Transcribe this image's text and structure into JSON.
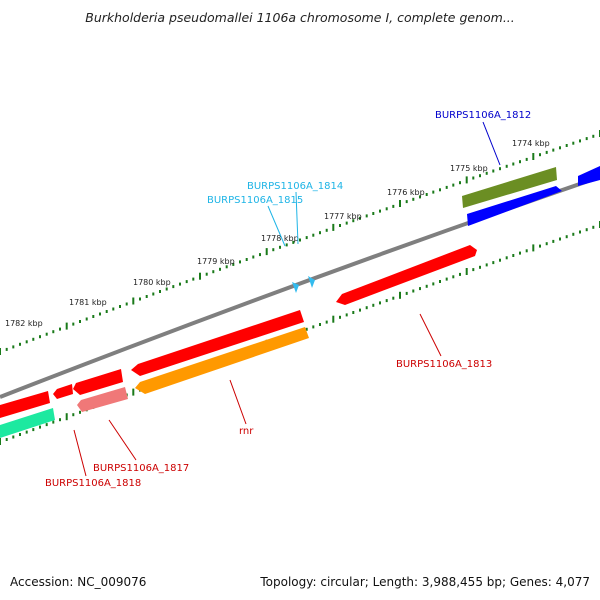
{
  "title": "Burkholderia pseudomallei 1106a chromosome I, complete genom...",
  "accession_label": "Accession: NC_009076",
  "summary_label": "Topology: circular; Length: 3,988,455 bp; Genes: 4,077",
  "scale_labels": [
    "1774 kbp",
    "1775 kbp",
    "1776 kbp",
    "1777 kbp",
    "1778 kbp",
    "1779 kbp",
    "1780 kbp",
    "1781 kbp",
    "1782 kbp"
  ],
  "gene_labels": [
    {
      "text": "BURPS1106A_1812",
      "color": "#0000cc"
    },
    {
      "text": "BURPS1106A_1814",
      "color": "#1eb4e6"
    },
    {
      "text": "BURPS1106A_1815",
      "color": "#1eb4e6"
    },
    {
      "text": "BURPS1106A_1813",
      "color": "#cc0000"
    },
    {
      "text": "rnr",
      "color": "#cc0000"
    },
    {
      "text": "BURPS1106A_1817",
      "color": "#cc0000"
    },
    {
      "text": "BURPS1106A_1818",
      "color": "#cc0000"
    }
  ],
  "colors": {
    "backbone": "#7f7f7f",
    "tick": "#1a7a1a",
    "gene_red": "#ff0000",
    "gene_pink": "#f07878",
    "gene_orange": "#ff9900",
    "gene_blue": "#0000ff",
    "gene_olive": "#6b8e23",
    "gene_green": "#1de9a0",
    "trna_cyan": "#33bbee"
  }
}
